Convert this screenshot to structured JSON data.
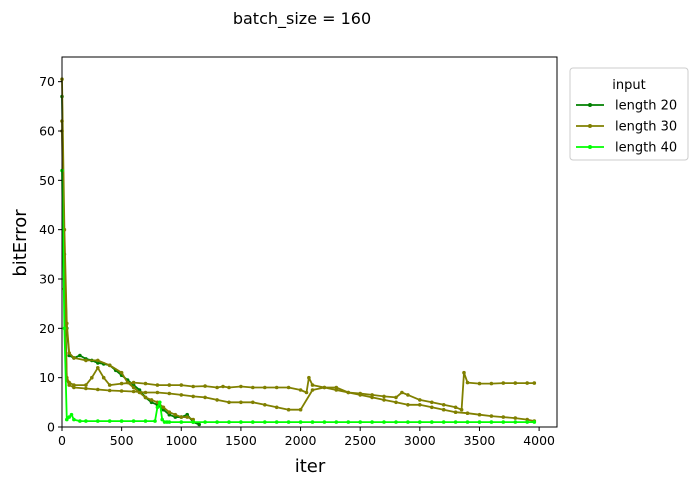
{
  "chart_data": {
    "type": "line",
    "title": "batch_size = 160",
    "xlabel": "iter",
    "ylabel": "bitError",
    "xlim": [
      0,
      4150
    ],
    "ylim": [
      0,
      75
    ],
    "xticks": [
      0,
      500,
      1000,
      1500,
      2000,
      2500,
      3000,
      3500,
      4000
    ],
    "yticks": [
      0,
      10,
      20,
      30,
      40,
      50,
      60,
      70
    ],
    "grid": false,
    "legend": {
      "title": "input",
      "placement": "outside-top-right"
    },
    "series": [
      {
        "name": "length 20",
        "color": "#008000",
        "x": [
          0,
          20,
          40,
          60,
          100,
          150,
          200,
          250,
          300,
          350,
          400,
          450,
          500,
          550,
          600,
          650,
          700,
          750,
          800,
          850,
          900,
          950,
          1000,
          1050,
          1100,
          1150
        ],
        "y": [
          67,
          35,
          20,
          14.5,
          14,
          14.5,
          13.8,
          13.5,
          13,
          12.8,
          12.5,
          11.5,
          10.5,
          9.5,
          8.5,
          7.5,
          6,
          5,
          4.5,
          3.5,
          2.5,
          2,
          2,
          2.5,
          1,
          0.5
        ]
      },
      {
        "name": "length 30",
        "color": "#808000",
        "x": [
          0,
          20,
          40,
          60,
          100,
          200,
          300,
          400,
          500,
          550,
          600,
          650,
          700,
          750,
          800,
          850,
          900,
          950,
          1000,
          1050,
          1100
        ],
        "y": [
          70.5,
          40,
          21,
          15,
          14,
          13.5,
          13.5,
          12.5,
          11,
          9,
          8,
          7,
          6,
          5.5,
          5,
          4,
          3,
          2.5,
          2,
          2,
          1.5
        ]
      },
      {
        "name": "length 30",
        "color": "#808000",
        "x": [
          0,
          20,
          40,
          60,
          100,
          200,
          250,
          300,
          350,
          400,
          500,
          600,
          700,
          800,
          900,
          1000,
          1100,
          1200,
          1300,
          1350,
          1400,
          1500,
          1600,
          1700,
          1800,
          1900,
          2000,
          2050,
          2070,
          2100,
          2200,
          2300,
          2400,
          2500,
          2600,
          2700,
          2800,
          2850,
          2900,
          3000,
          3100,
          3200,
          3300,
          3350,
          3370,
          3400,
          3500,
          3600,
          3700,
          3800,
          3900,
          3960
        ],
        "y": [
          62,
          30,
          10,
          9,
          8.5,
          8.5,
          10,
          12,
          10,
          8.5,
          8.8,
          9,
          8.8,
          8.5,
          8.5,
          8.5,
          8.2,
          8.3,
          8,
          8.2,
          8,
          8.2,
          8,
          8,
          8,
          8,
          7.5,
          7,
          10,
          8.5,
          8,
          7.5,
          7,
          6.8,
          6.5,
          6.2,
          6,
          7,
          6.5,
          5.5,
          5,
          4.5,
          4,
          3.5,
          11,
          9,
          8.8,
          8.8,
          8.9,
          8.9,
          8.9,
          8.9
        ]
      },
      {
        "name": "length 30",
        "color": "#808000",
        "x": [
          0,
          20,
          40,
          60,
          100,
          200,
          300,
          400,
          500,
          600,
          700,
          800,
          900,
          1000,
          1100,
          1200,
          1300,
          1400,
          1500,
          1600,
          1700,
          1800,
          1900,
          2000,
          2100,
          2200,
          2300,
          2400,
          2500,
          2600,
          2700,
          2800,
          2900,
          3000,
          3100,
          3200,
          3300,
          3400,
          3500,
          3600,
          3700,
          3800,
          3900,
          3960
        ],
        "y": [
          60,
          28,
          9.5,
          8.5,
          8,
          7.8,
          7.6,
          7.4,
          7.3,
          7.2,
          7,
          7,
          6.8,
          6.5,
          6.2,
          6,
          5.5,
          5,
          5,
          5,
          4.5,
          4,
          3.5,
          3.5,
          7.5,
          8,
          8,
          7,
          6.5,
          6,
          5.5,
          5,
          4.5,
          4.5,
          4,
          3.5,
          3,
          2.8,
          2.5,
          2.2,
          2,
          1.8,
          1.5,
          1.2
        ]
      },
      {
        "name": "length 40",
        "color": "#00ff00",
        "x": [
          0,
          20,
          40,
          60,
          80,
          100,
          150,
          200,
          300,
          400,
          500,
          600,
          700,
          780,
          800,
          820,
          840,
          860,
          880,
          900,
          1000,
          1100,
          1200,
          1300,
          1400,
          1500,
          1600,
          1700,
          1800,
          1900,
          2000,
          2100,
          2200,
          2300,
          2400,
          2500,
          2600,
          2700,
          2800,
          2900,
          3000,
          3100,
          3200,
          3300,
          3400,
          3500,
          3600,
          3700,
          3800,
          3900,
          3960
        ],
        "y": [
          52,
          20,
          1.5,
          2,
          2.5,
          1.5,
          1.2,
          1.2,
          1.2,
          1.2,
          1.2,
          1.2,
          1.2,
          1.2,
          4,
          5,
          1.5,
          1,
          1,
          1,
          1,
          1,
          1,
          1,
          1,
          1,
          1,
          1,
          1,
          1,
          1,
          1,
          1,
          1,
          1,
          1,
          1,
          1,
          1,
          1,
          1,
          1,
          1,
          1,
          1,
          1,
          1,
          1,
          1,
          1,
          1
        ]
      }
    ],
    "legend_entries": [
      {
        "label": "length 20",
        "color": "#008000"
      },
      {
        "label": "length 30",
        "color": "#808000"
      },
      {
        "label": "length 40",
        "color": "#00ff00"
      }
    ]
  }
}
